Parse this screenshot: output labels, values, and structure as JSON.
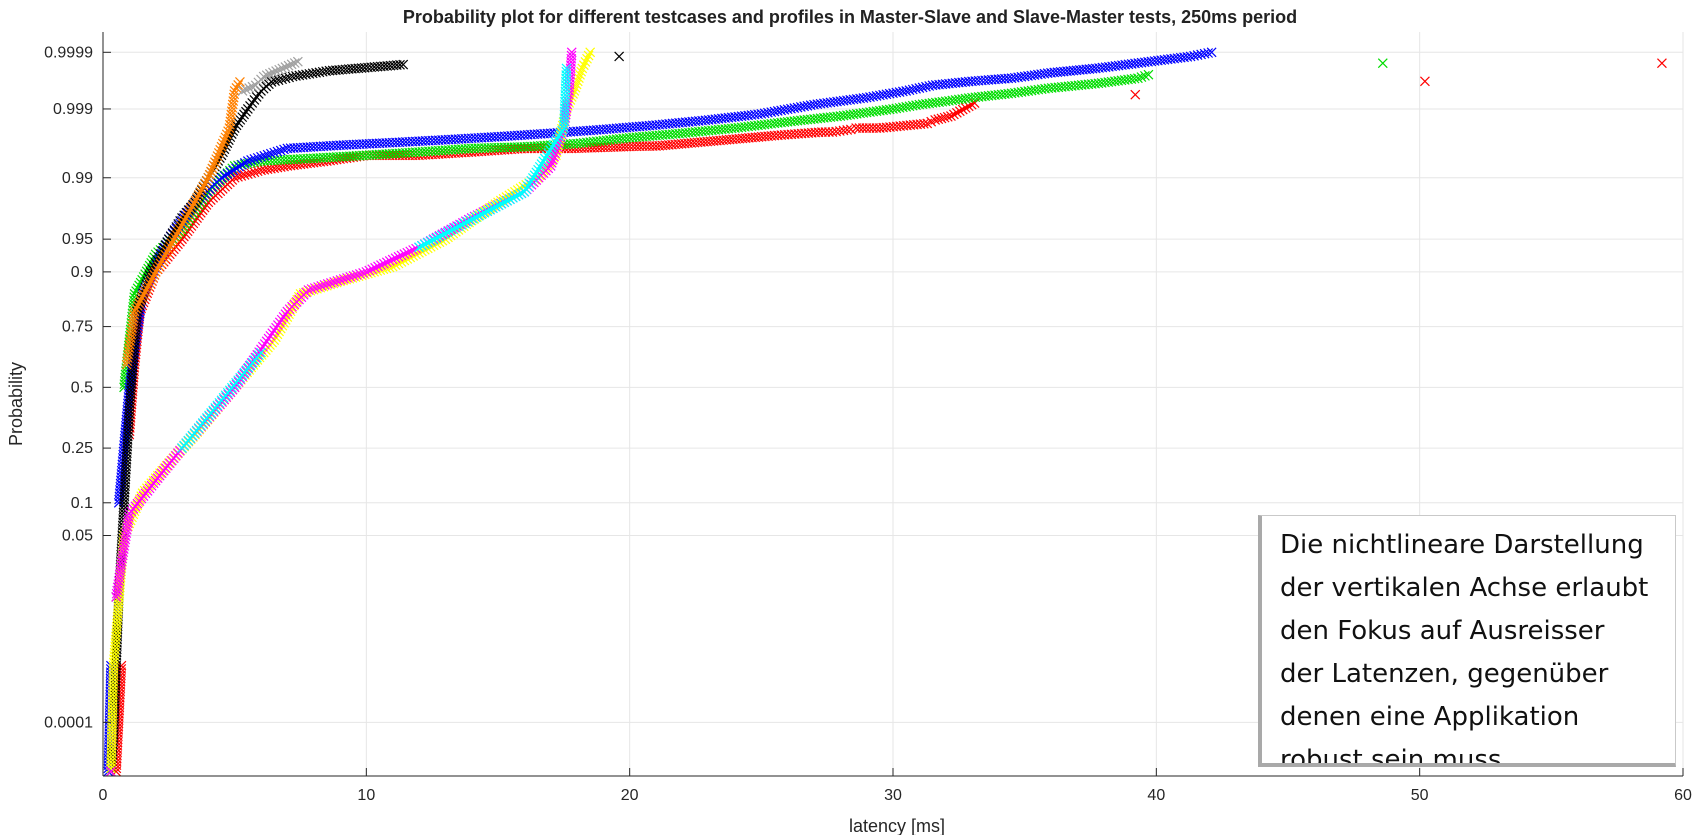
{
  "chart_data": {
    "type": "scatter",
    "title": "Probability plot for different testcases and profiles in Master-Slave and Slave-Master tests, 250ms period",
    "xlabel": "latency [ms]",
    "ylabel": "Probability",
    "xlim": [
      0,
      60
    ],
    "x_ticks": [
      0,
      10,
      20,
      30,
      40,
      50,
      60
    ],
    "y_scale": "normal-probability",
    "y_tick_labels": [
      "0.0001",
      "0.05",
      "0.1",
      "0.25",
      "0.5",
      "0.75",
      "0.9",
      "0.95",
      "0.99",
      "0.999",
      "0.9999"
    ],
    "grid": true,
    "marker": "x",
    "series_colors": [
      "#ff0000",
      "#00dd00",
      "#0000ff",
      "#000000",
      "#ffff00",
      "#ff00ff",
      "#00ffff",
      "#ff8000",
      "#a0a0a0"
    ],
    "series": [
      {
        "color": "#ff0000",
        "points": [
          [
            0.5,
            1e-05
          ],
          [
            0.7,
            0.001
          ],
          [
            1.0,
            0.3
          ],
          [
            1.2,
            0.6
          ],
          [
            1.4,
            0.8
          ],
          [
            2.0,
            0.9
          ],
          [
            3.0,
            0.95
          ],
          [
            4.0,
            0.98
          ],
          [
            5.0,
            0.99
          ],
          [
            6.0,
            0.992
          ],
          [
            7.0,
            0.993
          ],
          [
            8.5,
            0.994
          ],
          [
            10,
            0.995
          ],
          [
            12,
            0.995
          ],
          [
            14,
            0.9955
          ],
          [
            16,
            0.996
          ],
          [
            17.8,
            0.996
          ],
          [
            20.5,
            0.9963
          ],
          [
            21,
            0.9963
          ],
          [
            25.5,
            0.9974
          ],
          [
            27.3,
            0.9977
          ],
          [
            27.7,
            0.9977
          ],
          [
            28.4,
            0.9979
          ],
          [
            28.6,
            0.998
          ],
          [
            29.5,
            0.998
          ],
          [
            31.3,
            0.9983
          ],
          [
            31.6,
            0.9985
          ],
          [
            32.2,
            0.9987
          ],
          [
            33.1,
            0.9992
          ],
          [
            39.2,
            0.99942
          ],
          [
            50.2,
            0.99966
          ],
          [
            59.2,
            0.99984
          ]
        ]
      },
      {
        "color": "#00dd00",
        "points": [
          [
            0.3,
            1e-05
          ],
          [
            0.5,
            0.01
          ],
          [
            0.8,
            0.5
          ],
          [
            1.2,
            0.85
          ],
          [
            2.0,
            0.93
          ],
          [
            3.0,
            0.96
          ],
          [
            4.0,
            0.985
          ],
          [
            5.0,
            0.993
          ],
          [
            6.0,
            0.994
          ],
          [
            8.0,
            0.9945
          ],
          [
            10,
            0.995
          ],
          [
            12,
            0.9955
          ],
          [
            14,
            0.996
          ],
          [
            16,
            0.9962
          ],
          [
            18,
            0.9966
          ],
          [
            20,
            0.9972
          ],
          [
            22,
            0.9976
          ],
          [
            24,
            0.998
          ],
          [
            26,
            0.9984
          ],
          [
            28,
            0.9987
          ],
          [
            30,
            0.999
          ],
          [
            31,
            0.99915
          ],
          [
            32,
            0.99925
          ],
          [
            33,
            0.99935
          ],
          [
            34.5,
            0.99945
          ],
          [
            35.9,
            0.99955
          ],
          [
            37.8,
            0.99963
          ],
          [
            39.3,
            0.9997
          ],
          [
            39.7,
            0.99974
          ],
          [
            48.6,
            0.99984
          ]
        ]
      },
      {
        "color": "#0000ff",
        "points": [
          [
            0.2,
            1e-05
          ],
          [
            0.3,
            0.001
          ],
          [
            0.6,
            0.1
          ],
          [
            1.0,
            0.5
          ],
          [
            1.5,
            0.85
          ],
          [
            2.5,
            0.95
          ],
          [
            3.5,
            0.98
          ],
          [
            4.5,
            0.99
          ],
          [
            5.5,
            0.994
          ],
          [
            7.0,
            0.996
          ],
          [
            9.0,
            0.9964
          ],
          [
            11,
            0.9967
          ],
          [
            13,
            0.997
          ],
          [
            15,
            0.9973
          ],
          [
            17,
            0.9976
          ],
          [
            19,
            0.9979
          ],
          [
            21,
            0.9982
          ],
          [
            23,
            0.9985
          ],
          [
            25,
            0.9988
          ],
          [
            27,
            0.99915
          ],
          [
            29,
            0.99935
          ],
          [
            30.5,
            0.9995
          ],
          [
            31.5,
            0.9996
          ],
          [
            33,
            0.99966
          ],
          [
            34.5,
            0.9997
          ],
          [
            36,
            0.99976
          ],
          [
            37.7,
            0.9998
          ],
          [
            41.3,
            0.99988
          ],
          [
            42.1,
            0.9999
          ]
        ]
      },
      {
        "color": "#000000",
        "points": [
          [
            0.3,
            1e-05
          ],
          [
            0.4,
            5e-05
          ],
          [
            0.5,
            0.001
          ],
          [
            0.6,
            0.01
          ],
          [
            0.8,
            0.1
          ],
          [
            1.0,
            0.4
          ],
          [
            1.3,
            0.8
          ],
          [
            1.8,
            0.9
          ],
          [
            2.5,
            0.95
          ],
          [
            3.0,
            0.97
          ],
          [
            3.5,
            0.98
          ],
          [
            4.0,
            0.99
          ],
          [
            4.5,
            0.995
          ],
          [
            5.0,
            0.998
          ],
          [
            5.5,
            0.999
          ],
          [
            6.0,
            0.9995
          ],
          [
            6.4,
            0.99965
          ],
          [
            7.2,
            0.99972
          ],
          [
            8.6,
            0.99978
          ],
          [
            11.4,
            0.99983
          ],
          [
            19.6,
            0.99988
          ]
        ]
      },
      {
        "color": "#ffff00",
        "points": [
          [
            0.3,
            1e-05
          ],
          [
            0.4,
            0.001
          ],
          [
            0.8,
            0.05
          ],
          [
            1.5,
            0.12
          ],
          [
            2.5,
            0.2
          ],
          [
            3.5,
            0.3
          ],
          [
            5.0,
            0.5
          ],
          [
            6.5,
            0.7
          ],
          [
            7.5,
            0.85
          ],
          [
            9.0,
            0.88
          ],
          [
            11,
            0.91
          ],
          [
            13,
            0.95
          ],
          [
            15,
            0.98
          ],
          [
            16.5,
            0.99
          ],
          [
            17.2,
            0.995
          ],
          [
            17.6,
            0.999
          ],
          [
            17.9,
            0.9995
          ],
          [
            18.2,
            0.9998
          ],
          [
            18.5,
            0.9999
          ]
        ]
      },
      {
        "color": "#ff00ff",
        "points": [
          [
            0.3,
            1e-05
          ],
          [
            0.5,
            0.01
          ],
          [
            1.0,
            0.08
          ],
          [
            2.0,
            0.15
          ],
          [
            3.0,
            0.25
          ],
          [
            5.0,
            0.5
          ],
          [
            7.0,
            0.8
          ],
          [
            7.8,
            0.86
          ],
          [
            10,
            0.9
          ],
          [
            12,
            0.94
          ],
          [
            14,
            0.97
          ],
          [
            16,
            0.985
          ],
          [
            17,
            0.993
          ],
          [
            17.5,
            0.998
          ],
          [
            17.7,
            0.9995
          ],
          [
            17.8,
            0.9999
          ]
        ]
      },
      {
        "color": "#00ffff",
        "points": [
          [
            3.0,
            0.25
          ],
          [
            6.0,
            0.65
          ],
          [
            12,
            0.94
          ],
          [
            16,
            0.985
          ],
          [
            17.5,
            0.998
          ],
          [
            17.6,
            0.9998
          ]
        ]
      },
      {
        "color": "#ff8000",
        "points": [
          [
            0.9,
            0.6
          ],
          [
            1.2,
            0.8
          ],
          [
            2.0,
            0.9
          ],
          [
            4.0,
            0.99
          ],
          [
            4.8,
            0.998
          ],
          [
            5.0,
            0.9995
          ],
          [
            5.2,
            0.99965
          ]
        ]
      },
      {
        "color": "#a0a0a0",
        "points": [
          [
            5.3,
            0.9995
          ],
          [
            5.8,
            0.9996
          ],
          [
            6.1,
            0.99972
          ],
          [
            7.4,
            0.99985
          ]
        ]
      }
    ]
  },
  "annotation": {
    "lines": [
      "Die nichtlineare Darstellung",
      "der vertikalen Achse erlaubt",
      "den Fokus auf Ausreisser",
      "der Latenzen, gegenüber",
      "denen eine Applikation",
      "robust sein muss."
    ]
  }
}
